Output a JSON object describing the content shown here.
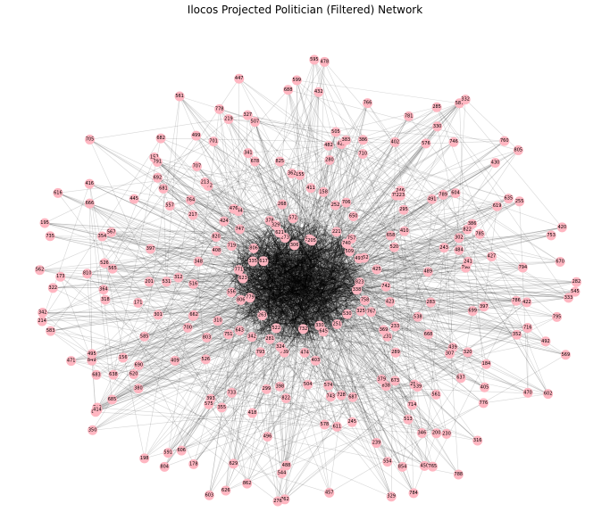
{
  "title": "Ilocos Projected Politician (Filtered) Network",
  "colors": {
    "node": "#ffb6c1",
    "edge": "#000000",
    "background": "#ffffff"
  },
  "nodes": [
    {
      "id": "352"
    },
    {
      "id": "620"
    },
    {
      "id": "766"
    },
    {
      "id": "788"
    },
    {
      "id": "354"
    },
    {
      "id": "619"
    },
    {
      "id": "355"
    },
    {
      "id": "778"
    },
    {
      "id": "320"
    },
    {
      "id": "585"
    },
    {
      "id": "330"
    },
    {
      "id": "578"
    },
    {
      "id": "157"
    },
    {
      "id": "333"
    },
    {
      "id": "350"
    },
    {
      "id": "599"
    },
    {
      "id": "714"
    },
    {
      "id": "322"
    },
    {
      "id": "604"
    },
    {
      "id": "418"
    },
    {
      "id": "701"
    },
    {
      "id": "716"
    },
    {
      "id": "683"
    },
    {
      "id": "710"
    },
    {
      "id": "450"
    },
    {
      "id": "616"
    },
    {
      "id": "753"
    },
    {
      "id": "591"
    },
    {
      "id": "447"
    },
    {
      "id": "439"
    },
    {
      "id": "342"
    },
    {
      "id": "587"
    },
    {
      "id": "457"
    },
    {
      "id": "682"
    },
    {
      "id": "699"
    },
    {
      "id": "858"
    },
    {
      "id": "595"
    },
    {
      "id": "346"
    },
    {
      "id": "565"
    },
    {
      "id": "386"
    },
    {
      "id": "603"
    },
    {
      "id": "327"
    },
    {
      "id": "602"
    },
    {
      "id": "849"
    },
    {
      "id": "781"
    },
    {
      "id": "329"
    },
    {
      "id": "692"
    },
    {
      "id": "427"
    },
    {
      "id": "198"
    },
    {
      "id": "432"
    },
    {
      "id": "561"
    },
    {
      "id": "318"
    },
    {
      "id": "430"
    },
    {
      "id": "862"
    },
    {
      "id": "707"
    },
    {
      "id": "397"
    },
    {
      "id": "690"
    },
    {
      "id": "429"
    },
    {
      "id": "854"
    },
    {
      "id": "195"
    },
    {
      "id": "420"
    },
    {
      "id": "606"
    },
    {
      "id": "341"
    },
    {
      "id": "184"
    },
    {
      "id": "583"
    },
    {
      "id": "332"
    },
    {
      "id": "611"
    },
    {
      "id": "705"
    },
    {
      "id": "422"
    },
    {
      "id": "685"
    },
    {
      "id": "688"
    },
    {
      "id": "316"
    },
    {
      "id": "810"
    },
    {
      "id": "805"
    },
    {
      "id": "496"
    },
    {
      "id": "561b"
    },
    {
      "id": "492"
    },
    {
      "id": "495"
    },
    {
      "id": "285"
    },
    {
      "id": "554"
    },
    {
      "id": "445"
    },
    {
      "id": "794"
    },
    {
      "id": "178"
    },
    {
      "id": "507"
    },
    {
      "id": "776"
    },
    {
      "id": "562"
    },
    {
      "id": "789"
    },
    {
      "id": "762"
    },
    {
      "id": "764"
    },
    {
      "id": "282"
    },
    {
      "id": "769"
    },
    {
      "id": "482"
    },
    {
      "id": "200"
    },
    {
      "id": "666"
    },
    {
      "id": "635"
    },
    {
      "id": "626"
    },
    {
      "id": "219"
    },
    {
      "id": "470"
    },
    {
      "id": "471"
    },
    {
      "id": "402"
    },
    {
      "id": "245"
    },
    {
      "id": "681"
    },
    {
      "id": "798"
    },
    {
      "id": "393"
    },
    {
      "id": "478"
    },
    {
      "id": "230"
    },
    {
      "id": "173"
    },
    {
      "id": "491"
    },
    {
      "id": "544"
    },
    {
      "id": "372"
    },
    {
      "id": "795"
    },
    {
      "id": "638"
    },
    {
      "id": "386b"
    },
    {
      "id": "239"
    },
    {
      "id": "567"
    },
    {
      "id": "255"
    },
    {
      "id": "575"
    },
    {
      "id": "678"
    },
    {
      "id": "637"
    },
    {
      "id": "214"
    },
    {
      "id": "746"
    },
    {
      "id": "488"
    },
    {
      "id": "557"
    },
    {
      "id": "786"
    },
    {
      "id": "414"
    },
    {
      "id": "505"
    },
    {
      "id": "513"
    },
    {
      "id": "526"
    },
    {
      "id": "822"
    },
    {
      "id": "629"
    },
    {
      "id": "499"
    },
    {
      "id": "569"
    },
    {
      "id": "156"
    },
    {
      "id": "576"
    },
    {
      "id": "784"
    },
    {
      "id": "416"
    },
    {
      "id": "670"
    },
    {
      "id": "804"
    },
    {
      "id": "825"
    },
    {
      "id": "405"
    },
    {
      "id": "364"
    },
    {
      "id": "760"
    },
    {
      "id": "276"
    },
    {
      "id": "791"
    },
    {
      "id": "545"
    },
    {
      "id": "380"
    },
    {
      "id": "383"
    },
    {
      "id": "765"
    },
    {
      "id": "735"
    },
    {
      "id": "785"
    },
    {
      "id": "793"
    },
    {
      "id": "273"
    },
    {
      "id": "233"
    },
    {
      "id": "171"
    },
    {
      "id": "750"
    },
    {
      "id": "574"
    },
    {
      "id": "820"
    },
    {
      "id": "823"
    },
    {
      "id": "751"
    },
    {
      "id": "155"
    },
    {
      "id": "259"
    },
    {
      "id": "531"
    },
    {
      "id": "752"
    },
    {
      "id": "739"
    },
    {
      "id": "744"
    },
    {
      "id": "758"
    },
    {
      "id": "267"
    },
    {
      "id": "221"
    },
    {
      "id": "728"
    },
    {
      "id": "719"
    },
    {
      "id": "243"
    },
    {
      "id": "733"
    },
    {
      "id": "572"
    },
    {
      "id": "307"
    },
    {
      "id": "556"
    },
    {
      "id": "509"
    },
    {
      "id": "732"
    },
    {
      "id": "806"
    },
    {
      "id": "338"
    },
    {
      "id": "643"
    },
    {
      "id": "158"
    },
    {
      "id": "838"
    },
    {
      "id": "397b"
    },
    {
      "id": "410"
    },
    {
      "id": "398"
    },
    {
      "id": "378"
    },
    {
      "id": "767"
    },
    {
      "id": "779"
    },
    {
      "id": "757"
    },
    {
      "id": "330b"
    },
    {
      "id": "335"
    },
    {
      "id": "425"
    },
    {
      "id": "526b"
    },
    {
      "id": "537"
    },
    {
      "id": "539"
    },
    {
      "id": "201"
    },
    {
      "id": "493"
    },
    {
      "id": "474"
    },
    {
      "id": "213"
    },
    {
      "id": "283"
    },
    {
      "id": "310"
    },
    {
      "id": "252"
    },
    {
      "id": "251"
    },
    {
      "id": "771"
    },
    {
      "id": "520"
    },
    {
      "id": "522"
    },
    {
      "id": "329b"
    },
    {
      "id": "530"
    },
    {
      "id": "806b"
    },
    {
      "id": "740"
    },
    {
      "id": "743"
    },
    {
      "id": "747"
    },
    {
      "id": "742"
    },
    {
      "id": "409"
    },
    {
      "id": "411"
    },
    {
      "id": "673"
    },
    {
      "id": "623"
    },
    {
      "id": "658"
    },
    {
      "id": "822b"
    },
    {
      "id": "621"
    },
    {
      "id": "668"
    },
    {
      "id": "662"
    },
    {
      "id": "650"
    },
    {
      "id": "687"
    },
    {
      "id": "617"
    },
    {
      "id": "489"
    },
    {
      "id": "342b"
    },
    {
      "id": "306"
    },
    {
      "id": "231"
    },
    {
      "id": "312"
    },
    {
      "id": "246"
    },
    {
      "id": "504"
    },
    {
      "id": "424"
    },
    {
      "id": "423"
    },
    {
      "id": "803"
    },
    {
      "id": "205"
    },
    {
      "id": "379"
    },
    {
      "id": "348"
    },
    {
      "id": "484"
    },
    {
      "id": "324"
    },
    {
      "id": "268"
    },
    {
      "id": "325"
    },
    {
      "id": "301"
    },
    {
      "id": "223"
    },
    {
      "id": "403"
    },
    {
      "id": "217"
    },
    {
      "id": "241"
    },
    {
      "id": "263"
    },
    {
      "id": "280"
    },
    {
      "id": "289"
    },
    {
      "id": "516"
    },
    {
      "id": "295"
    },
    {
      "id": "299"
    },
    {
      "id": "476"
    },
    {
      "id": "538"
    },
    {
      "id": "700"
    },
    {
      "id": "706"
    },
    {
      "id": "645"
    },
    {
      "id": "408"
    },
    {
      "id": "302"
    },
    {
      "id": "281"
    },
    {
      "id": "362"
    },
    {
      "id": "369"
    }
  ]
}
